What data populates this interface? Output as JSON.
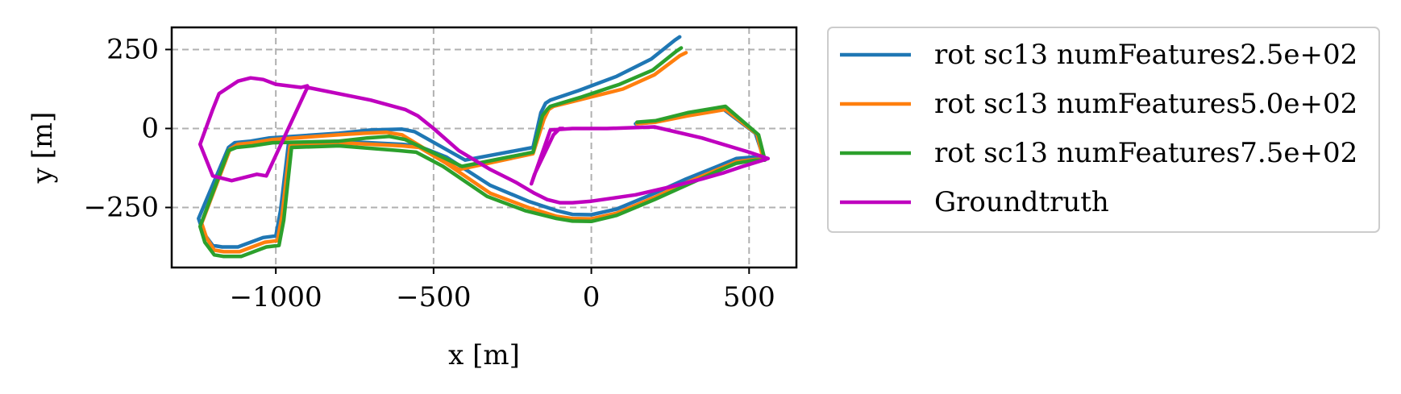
{
  "chart_data": {
    "type": "line",
    "title": "",
    "xlabel": "x [m]",
    "ylabel": "y [m]",
    "xlim": [
      -1330,
      650
    ],
    "ylim": [
      -440,
      320
    ],
    "xticks": [
      -1000,
      -500,
      0,
      500
    ],
    "xtick_labels": [
      "−1000",
      "−500",
      "0",
      "500"
    ],
    "yticks": [
      -250,
      0,
      250
    ],
    "ytick_labels": [
      "−250",
      "0",
      "250"
    ],
    "grid": true,
    "legend_position": "outside-right-top",
    "series": [
      {
        "name": "rot sc13 numFeatures2.5e+02",
        "color": "#1f77b4",
        "x": [
          280,
          265,
          190,
          80,
          -40,
          -130,
          -145,
          -160,
          -185,
          -400,
          -560,
          -600,
          -700,
          -800,
          -1020,
          -1080,
          -1130,
          -1150,
          -1245,
          -1230,
          -1200,
          -1170,
          -1120,
          -1040,
          -1000,
          -985,
          -960,
          -800,
          -600,
          -550,
          -460,
          -320,
          -200,
          -110,
          -60,
          0,
          80,
          200,
          300,
          400,
          460,
          520,
          545,
          520,
          420,
          300,
          200,
          140
        ],
        "y": [
          290,
          280,
          220,
          165,
          120,
          90,
          80,
          50,
          -60,
          -100,
          -10,
          -2,
          -5,
          -15,
          -30,
          -40,
          -45,
          -60,
          -285,
          -330,
          -370,
          -375,
          -375,
          -345,
          -340,
          -260,
          -50,
          -40,
          -50,
          -55,
          -90,
          -180,
          -230,
          -260,
          -272,
          -273,
          -255,
          -205,
          -160,
          -120,
          -95,
          -90,
          -90,
          -15,
          60,
          40,
          20,
          15
        ]
      },
      {
        "name": "rot sc13 numFeatures5.0e+02",
        "color": "#ff7f0e",
        "x": [
          300,
          280,
          200,
          100,
          -20,
          -120,
          -135,
          -150,
          -185,
          -420,
          -600,
          -650,
          -720,
          -800,
          -1010,
          -1070,
          -1120,
          -1145,
          -1235,
          -1220,
          -1195,
          -1165,
          -1115,
          -1035,
          -995,
          -980,
          -955,
          -800,
          -600,
          -545,
          -460,
          -320,
          -200,
          -110,
          -60,
          0,
          80,
          200,
          300,
          400,
          460,
          520,
          545,
          525,
          425,
          305,
          205,
          145
        ],
        "y": [
          240,
          230,
          170,
          125,
          95,
          70,
          60,
          30,
          -80,
          -130,
          -20,
          -12,
          -15,
          -20,
          -35,
          -45,
          -50,
          -65,
          -300,
          -345,
          -385,
          -390,
          -390,
          -360,
          -355,
          -275,
          -55,
          -45,
          -55,
          -60,
          -110,
          -205,
          -250,
          -278,
          -285,
          -286,
          -268,
          -218,
          -172,
          -130,
          -105,
          -98,
          -98,
          -18,
          60,
          40,
          20,
          15
        ]
      },
      {
        "name": "rot sc13 numFeatures7.5e+02",
        "color": "#2ca02c",
        "x": [
          285,
          270,
          195,
          90,
          -30,
          -130,
          -140,
          -155,
          -185,
          -410,
          -590,
          -640,
          -710,
          -800,
          -1010,
          -1075,
          -1125,
          -1150,
          -1240,
          -1225,
          -1195,
          -1165,
          -1110,
          -1030,
          -990,
          -975,
          -950,
          -800,
          -610,
          -555,
          -470,
          -330,
          -210,
          -110,
          -60,
          0,
          80,
          200,
          300,
          400,
          460,
          520,
          550,
          530,
          425,
          305,
          205,
          145
        ],
        "y": [
          255,
          245,
          185,
          140,
          100,
          70,
          60,
          40,
          -75,
          -120,
          -35,
          -25,
          -30,
          -40,
          -45,
          -55,
          -60,
          -70,
          -310,
          -360,
          -400,
          -405,
          -405,
          -375,
          -370,
          -290,
          -60,
          -55,
          -70,
          -75,
          -120,
          -215,
          -260,
          -285,
          -293,
          -294,
          -275,
          -225,
          -180,
          -135,
          -110,
          -100,
          -100,
          -20,
          70,
          50,
          25,
          20
        ]
      },
      {
        "name": "Groundtruth",
        "color": "#bf00bf",
        "x": [
          -900,
          -920,
          -1000,
          -1040,
          -1080,
          -1120,
          -1180,
          -1200,
          -1240,
          -1200,
          -1140,
          -1060,
          -1030,
          -900,
          -700,
          -590,
          -550,
          -500,
          -420,
          -320,
          -240,
          -180,
          -140,
          -100,
          -60,
          0,
          140,
          250,
          350,
          420,
          480,
          545,
          560,
          500,
          350,
          200,
          50,
          -60,
          -130,
          -190,
          -180,
          -120,
          -100,
          -90
        ],
        "y": [
          135,
          130,
          140,
          155,
          160,
          150,
          110,
          60,
          -50,
          -150,
          -165,
          -145,
          -150,
          130,
          90,
          60,
          40,
          0,
          -70,
          -130,
          -170,
          -205,
          -225,
          -235,
          -235,
          -230,
          -210,
          -185,
          -160,
          -140,
          -120,
          -100,
          -95,
          -75,
          -30,
          5,
          0,
          0,
          -5,
          -175,
          -145,
          -20,
          0,
          0
        ]
      }
    ]
  }
}
